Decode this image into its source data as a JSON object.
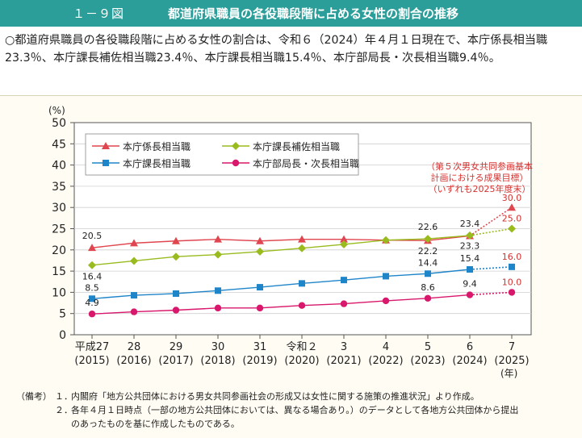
{
  "header": {
    "fig_no": "１－９図",
    "title": "都道府県職員の各役職段階に占める女性の割合の推移"
  },
  "summary": "○都道府県職員の各役職段階に占める女性の割合は、令和６（2024）年４月１日現在で、本庁係長相当職23.3％、本庁課長補佐相当職23.4％、本庁課長相当職15.4％、本庁部局長・次長相当職9.4％。",
  "notes": {
    "label": "（備考）",
    "items": [
      {
        "num": "１．",
        "text": "内閣府「地方公共団体における男女共同参画社会の形成又は女性に関する施策の推進状況」より作成。"
      },
      {
        "num": "２．",
        "text": "各年４月１日時点（一部の地方公共団体においては、異なる場合あり。）のデータとして各地方公共団体から提出",
        "text2": "のあったものを基に作成したものである。"
      }
    ]
  },
  "chart_data": {
    "type": "line",
    "y_unit": "(%)",
    "x_unit": "(年)",
    "ylim": [
      0,
      50
    ],
    "yticks": [
      0,
      5,
      10,
      15,
      20,
      25,
      30,
      35,
      40,
      45,
      50
    ],
    "categories": [
      {
        "era": "平成27",
        "year": "(2015)"
      },
      {
        "era": "28",
        "year": "(2016)"
      },
      {
        "era": "29",
        "year": "(2017)"
      },
      {
        "era": "30",
        "year": "(2018)"
      },
      {
        "era": "31",
        "year": "(2019)"
      },
      {
        "era": "令和２",
        "year": "(2020)"
      },
      {
        "era": "3",
        "year": "(2021)"
      },
      {
        "era": "4",
        "year": "(2022)"
      },
      {
        "era": "5",
        "year": "(2023)"
      },
      {
        "era": "6",
        "year": "(2024)"
      },
      {
        "era": "7",
        "year": "(2025)"
      }
    ],
    "target_note": [
      "（第５次男女共同参画基本",
      "計画における成果目標）",
      "（いずれも2025年度末）"
    ],
    "series": [
      {
        "name": "本庁係長相当職",
        "color": "#e0464f",
        "marker": "triangle",
        "values": [
          20.5,
          21.6,
          22.1,
          22.5,
          22.1,
          22.5,
          22.5,
          22.3,
          22.2,
          23.3,
          30.0
        ],
        "labels": [
          "20.5",
          null,
          null,
          null,
          null,
          null,
          null,
          null,
          "22.2",
          "23.3",
          "30.0"
        ]
      },
      {
        "name": "本庁課長補佐相当職",
        "color": "#99bb1e",
        "marker": "diamond",
        "values": [
          16.4,
          17.4,
          18.4,
          18.9,
          19.6,
          20.4,
          21.3,
          22.3,
          22.6,
          23.4,
          25.0
        ],
        "labels": [
          "16.4",
          null,
          null,
          null,
          null,
          null,
          null,
          null,
          "22.6",
          "23.4",
          "25.0"
        ]
      },
      {
        "name": "本庁課長相当職",
        "color": "#1f85c9",
        "marker": "square",
        "values": [
          8.5,
          9.3,
          9.7,
          10.4,
          11.2,
          12.1,
          12.9,
          13.8,
          14.4,
          15.4,
          16.0
        ],
        "labels": [
          "8.5",
          null,
          null,
          null,
          null,
          null,
          null,
          null,
          "14.4",
          "15.4",
          "16.0"
        ]
      },
      {
        "name": "本庁部局長・次長相当職",
        "color": "#d9176c",
        "marker": "circle",
        "values": [
          4.9,
          5.4,
          5.8,
          6.3,
          6.3,
          6.9,
          7.3,
          8.0,
          8.6,
          9.4,
          10.0
        ],
        "labels": [
          "4.9",
          null,
          null,
          null,
          null,
          null,
          null,
          null,
          "8.6",
          "9.4",
          "10.0"
        ]
      }
    ]
  }
}
